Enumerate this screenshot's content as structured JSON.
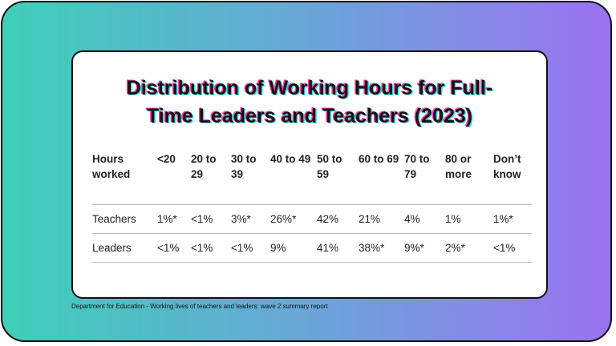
{
  "title": "Distribution of Working Hours for Full-Time Leaders and Teachers (2023)",
  "table": {
    "header": [
      "Hours worked",
      "<20",
      "20 to 29",
      "30 to 39",
      "40 to 49",
      "50 to 59",
      "60 to 69",
      "70 to 79",
      "80 or more",
      "Don’t know"
    ],
    "rows": [
      [
        "Teachers",
        "1%*",
        "<1%",
        "3%*",
        "26%*",
        "42%",
        "21%",
        "4%",
        "1%",
        "1%*"
      ],
      [
        "Leaders",
        "<1%",
        "<1%",
        "<1%",
        "9%",
        "41%",
        "38%*",
        "9%*",
        "2%*",
        "<1%"
      ]
    ]
  },
  "source": "Department for Education - Working lives of teachers and leaders: wave 2 summary report"
}
